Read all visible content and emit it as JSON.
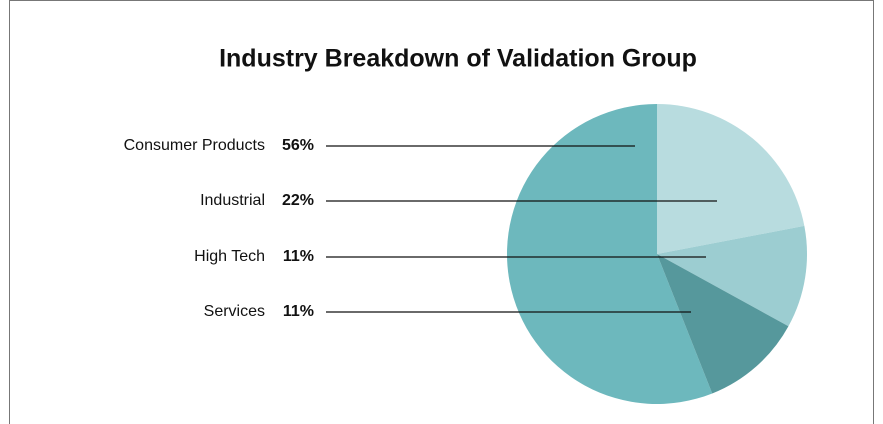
{
  "chart_data": {
    "type": "pie",
    "title": "Industry Breakdown of Validation Group",
    "categories": [
      "Consumer Products",
      "Industrial",
      "High Tech",
      "Services"
    ],
    "values": [
      56,
      22,
      11,
      11
    ],
    "value_labels": [
      "56%",
      "22%",
      "11%",
      "11%"
    ],
    "colors": [
      "#6db8bd",
      "#b8dcdf",
      "#9ccdd1",
      "#56989c"
    ]
  }
}
